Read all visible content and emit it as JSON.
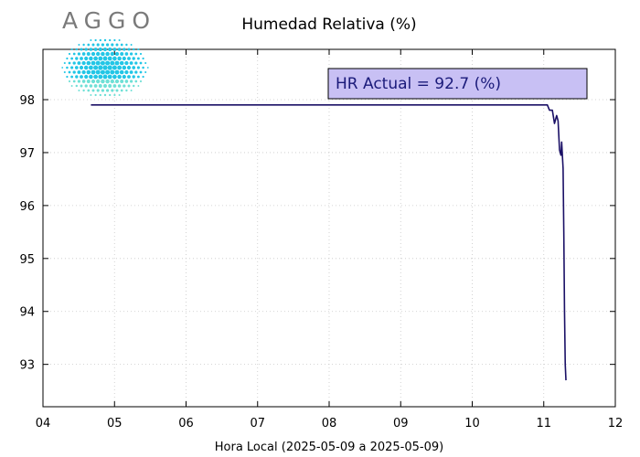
{
  "logo": {
    "text": "AGGO",
    "accent": "#22c6e6"
  },
  "chart_data": {
    "type": "line",
    "title": "Humedad Relativa (%)",
    "xlabel": "Hora Local (2025-05-09 a 2025-05-09)",
    "ylabel": "",
    "xlim": [
      4,
      12
    ],
    "ylim": [
      92.2,
      98.95
    ],
    "x_ticks": [
      "04",
      "05",
      "06",
      "07",
      "08",
      "09",
      "10",
      "11",
      "12"
    ],
    "y_ticks": [
      93,
      94,
      95,
      96,
      97,
      98
    ],
    "grid": true,
    "annotation": "HR Actual = 92.7 (%)",
    "annotation_color": "#1a1a7a",
    "annotation_bg": "#c8c0f4",
    "series": [
      {
        "color": "#1a1066",
        "x": [
          4.67,
          11.05,
          11.08,
          11.12,
          11.15,
          11.18,
          11.2,
          11.22,
          11.24,
          11.25,
          11.27,
          11.28,
          11.29,
          11.3,
          11.31
        ],
        "y": [
          97.9,
          97.9,
          97.8,
          97.8,
          97.55,
          97.7,
          97.6,
          97.05,
          96.95,
          97.2,
          96.7,
          95.5,
          94.0,
          93.0,
          92.7
        ]
      }
    ]
  }
}
